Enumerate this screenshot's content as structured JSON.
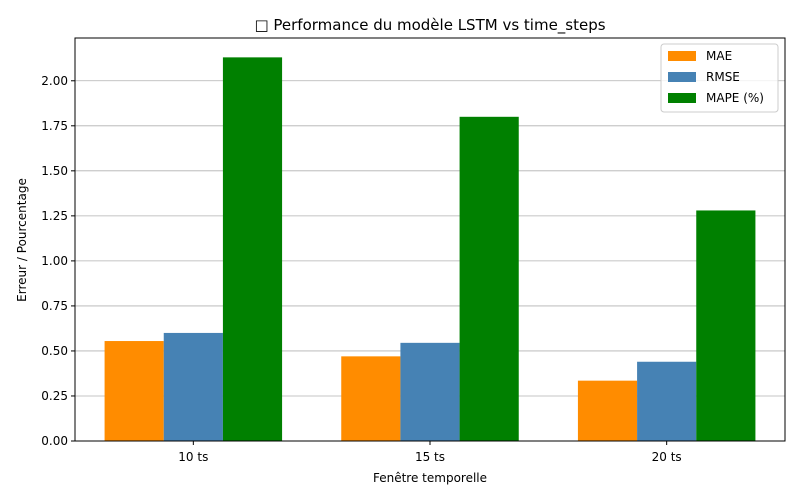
{
  "chart_data": {
    "type": "bar",
    "title": "□ Performance du modèle LSTM vs time_steps",
    "xlabel": "Fenêtre temporelle",
    "ylabel": "Erreur / Pourcentage",
    "categories": [
      "10 ts",
      "15 ts",
      "20 ts"
    ],
    "series": [
      {
        "name": "MAE",
        "color": "#ff8c00",
        "values": [
          0.555,
          0.47,
          0.335
        ]
      },
      {
        "name": "RMSE",
        "color": "#4682b4",
        "values": [
          0.6,
          0.545,
          0.44
        ]
      },
      {
        "name": "MAPE (%)",
        "color": "#008000",
        "values": [
          2.13,
          1.8,
          1.28
        ]
      }
    ],
    "ylim": [
      0,
      2.2375
    ],
    "yticks": [
      "0.00",
      "0.25",
      "0.50",
      "0.75",
      "1.00",
      "1.25",
      "1.50",
      "1.75",
      "2.00"
    ],
    "grid": "y",
    "legend_position": "top-right"
  }
}
